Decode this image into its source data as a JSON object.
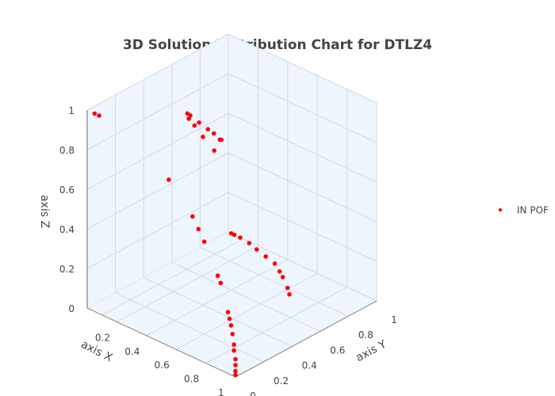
{
  "chart_data": {
    "type": "scatter3d",
    "title": "3D Solution Distribution Chart for DTLZ4",
    "axes": {
      "x": {
        "label": "axis X",
        "ticks": [
          "0.2",
          "0.4",
          "0.6",
          "0.8",
          "1"
        ]
      },
      "y": {
        "label": "axis Y",
        "ticks": [
          "0",
          "0.2",
          "0.4",
          "0.6",
          "0.8",
          "1"
        ]
      },
      "z": {
        "label": "axis Z",
        "ticks": [
          "0",
          "0.2",
          "0.4",
          "0.6",
          "0.8",
          "1"
        ]
      }
    },
    "legend": {
      "position": "right"
    },
    "series": [
      {
        "name": "IN POF",
        "color": "#ff0000",
        "marker": "circle",
        "points": [
          [
            0.05,
            0.0,
            1.0
          ],
          [
            0.08,
            0.0,
            1.0
          ],
          [
            0.55,
            0.0,
            0.84
          ],
          [
            0.71,
            0.0,
            0.71
          ],
          [
            0.75,
            0.0,
            0.66
          ],
          [
            0.79,
            0.0,
            0.61
          ],
          [
            0.88,
            0.0,
            0.47
          ],
          [
            0.9,
            0.0,
            0.44
          ],
          [
            0.95,
            0.0,
            0.31
          ],
          [
            0.96,
            0.0,
            0.28
          ],
          [
            0.97,
            0.0,
            0.25
          ],
          [
            0.98,
            0.0,
            0.21
          ],
          [
            0.99,
            0.0,
            0.16
          ],
          [
            0.99,
            0.0,
            0.13
          ],
          [
            1.0,
            0.0,
            0.09
          ],
          [
            1.0,
            0.0,
            0.06
          ],
          [
            1.0,
            0.0,
            0.03
          ],
          [
            1.0,
            0.0,
            0.01
          ],
          [
            0.0,
            0.9,
            0.45
          ],
          [
            0.0,
            0.82,
            0.55
          ],
          [
            0.0,
            0.76,
            0.63
          ],
          [
            0.0,
            0.72,
            0.68
          ],
          [
            0.0,
            0.71,
            0.71
          ],
          [
            0.01,
            0.72,
            0.7
          ],
          [
            0.05,
            0.74,
            0.67
          ],
          [
            0.1,
            0.75,
            0.65
          ],
          [
            0.15,
            0.74,
            0.65
          ],
          [
            0.2,
            0.73,
            0.64
          ],
          [
            0.22,
            0.72,
            0.65
          ],
          [
            0.64,
            0.76,
            0.0
          ],
          [
            0.59,
            0.8,
            0.0
          ],
          [
            0.5,
            0.86,
            0.0
          ],
          [
            0.45,
            0.89,
            0.0
          ],
          [
            0.38,
            0.93,
            0.0
          ],
          [
            0.3,
            0.95,
            0.0
          ],
          [
            0.22,
            0.97,
            0.0
          ],
          [
            0.15,
            0.99,
            0.0
          ],
          [
            0.08,
            1.0,
            0.0
          ],
          [
            0.04,
            1.0,
            0.0
          ],
          [
            0.02,
            1.0,
            0.0
          ]
        ]
      }
    ]
  }
}
